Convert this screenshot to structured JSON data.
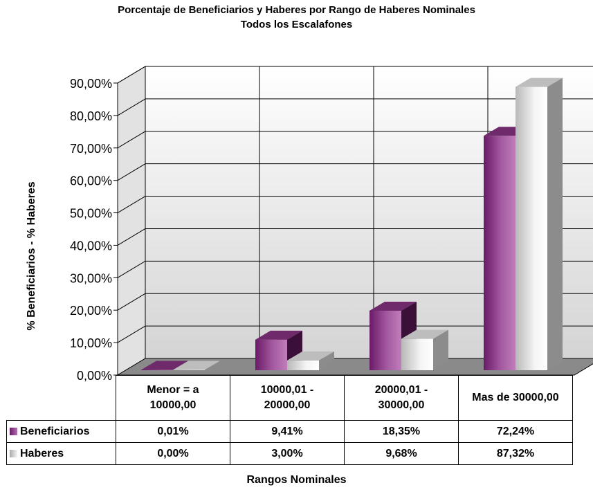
{
  "chart_data": {
    "type": "bar",
    "title": "Porcentaje de Beneficiarios y Haberes por Rango de Haberes Nominales",
    "subtitle": "Todos los Escalafones",
    "xlabel": "Rangos Nominales",
    "ylabel": "% Beneficiarios - % Haberes",
    "ylim": [
      0,
      90
    ],
    "yticks": [
      "0,00%",
      "10,00%",
      "20,00%",
      "30,00%",
      "40,00%",
      "50,00%",
      "60,00%",
      "70,00%",
      "80,00%",
      "90,00%"
    ],
    "categories": [
      [
        "Menor = a",
        "10000,00"
      ],
      [
        "10000,01 -",
        "20000,00"
      ],
      [
        "20000,01 -",
        "30000,00"
      ],
      [
        "Mas de 30000,00"
      ]
    ],
    "series": [
      {
        "name": "Beneficiarios",
        "values": [
          0.01,
          9.41,
          18.35,
          72.24
        ],
        "labels": [
          "0,01%",
          "9,41%",
          "18,35%",
          "72,24%"
        ],
        "color": "#9b3f95"
      },
      {
        "name": "Haberes",
        "values": [
          0.0,
          3.0,
          9.68,
          87.32
        ],
        "labels": [
          "0,00%",
          "3,00%",
          "9,68%",
          "87,32%"
        ],
        "color": "#dcdcdc"
      }
    ],
    "grid": true,
    "legend": "data-table"
  }
}
